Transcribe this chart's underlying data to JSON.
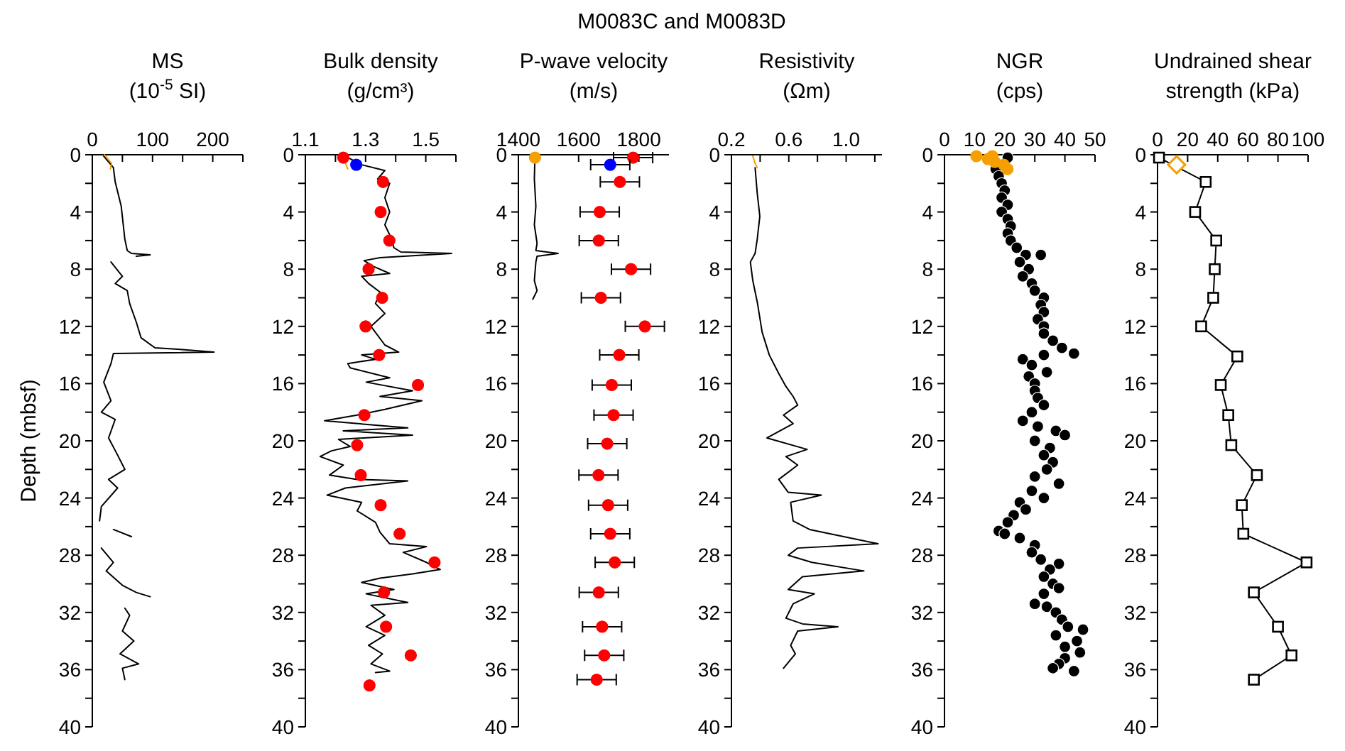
{
  "chart_data": [
    {
      "type": "other",
      "title": "M0083C and M0083D"
    },
    {
      "type": "line",
      "title": "MS",
      "xlabel": "(10$^{-5}$ SI)",
      "ylabel": "Depth (mbsf)",
      "xlim": [
        0,
        250
      ],
      "xticks": [
        0,
        {
          "value": 50,
          "label": null
        },
        100,
        {
          "value": 150,
          "label": null
        },
        200,
        {
          "value": 250,
          "label": null
        }
      ],
      "ylim": [
        40,
        0
      ],
      "yticks": [
        0,
        {
          "value": 2,
          "label": null
        },
        4,
        {
          "value": 6,
          "label": null
        },
        8,
        {
          "value": 10,
          "label": null
        },
        12,
        {
          "value": 14,
          "label": null
        },
        16,
        {
          "value": 18,
          "label": null
        },
        20,
        {
          "value": 22,
          "label": null
        },
        24,
        {
          "value": 26,
          "label": null
        },
        28,
        {
          "value": 30,
          "label": null
        },
        32,
        {
          "value": 34,
          "label": null
        },
        36,
        {
          "value": 38,
          "label": null
        },
        40
      ],
      "series": [
        {
          "color": "#000000",
          "x": [
            19,
            35,
            38,
            48,
            54,
            58,
            65,
            96,
            73,
            null,
            31,
            50,
            38,
            58,
            62,
            73,
            81,
            104,
            142,
            202,
            35,
            31,
            19,
            31,
            15,
            38,
            27,
            42,
            54,
            27,
            42,
            15,
            12,
            null,
            35,
            65,
            null,
            15,
            35,
            23,
            50,
            73,
            96,
            null,
            54,
            62,
            50,
            69,
            46,
            77,
            50,
            54
          ],
          "values": [
            0.1,
            0.9,
            1.9,
            3.6,
            5.9,
            6.7,
            6.9,
            7.0,
            7.1,
            null,
            7.5,
            8.5,
            9.0,
            9.5,
            10.4,
            11.7,
            12.8,
            13.5,
            13.6,
            13.8,
            13.9,
            14.6,
            15.9,
            17.2,
            18.0,
            18.5,
            19.8,
            21.0,
            22.0,
            22.7,
            23.3,
            24.6,
            25.6,
            null,
            26.2,
            26.7,
            null,
            27.5,
            28.5,
            29.1,
            30.1,
            30.6,
            30.9,
            null,
            31.7,
            32.2,
            33.3,
            34.0,
            34.9,
            35.6,
            35.9,
            36.7
          ]
        },
        {
          "color": "#f5a000",
          "x": [
            20,
            28,
            32,
            30
          ],
          "values": [
            0.0,
            0.4,
            0.6,
            1.0
          ]
        }
      ]
    },
    {
      "type": "line",
      "title": "Bulk density",
      "xlabel": "(g/cm³)",
      "xlim": [
        1.1,
        1.6
      ],
      "xticks": [
        1.1,
        {
          "value": 1.2,
          "label": null
        },
        1.3,
        {
          "value": 1.4,
          "label": null
        },
        1.5,
        {
          "value": 1.6,
          "label": null
        }
      ],
      "ylim": [
        40,
        0
      ],
      "yticks": [
        0,
        {
          "value": 2,
          "label": null
        },
        4,
        {
          "value": 6,
          "label": null
        },
        8,
        {
          "value": 10,
          "label": null
        },
        12,
        {
          "value": 14,
          "label": null
        },
        16,
        {
          "value": 18,
          "label": null
        },
        20,
        {
          "value": 22,
          "label": null
        },
        24,
        {
          "value": 26,
          "label": null
        },
        28,
        {
          "value": 30,
          "label": null
        },
        32,
        {
          "value": 34,
          "label": null
        },
        36,
        {
          "value": 38,
          "label": null
        },
        40
      ],
      "series": [
        {
          "color": "#000000",
          "x": [
            1.233,
            1.287,
            1.364,
            1.34,
            1.38,
            1.364,
            1.38,
            1.364,
            1.387,
            1.394,
            1.417,
            1.586,
            1.348,
            1.295,
            1.325,
            1.38,
            1.287,
            1.31,
            1.348,
            1.333,
            1.364,
            1.318,
            1.364,
            1.41,
            1.287,
            1.333,
            1.241,
            1.249,
            1.38,
            1.302,
            1.456,
            1.348,
            1.487,
            1.364,
            1.272,
            1.164,
            1.44,
            1.226,
            1.456,
            1.21,
            1.249,
            1.187,
            1.149,
            1.226,
            1.18,
            1.272,
            1.44,
            1.233,
            1.172,
            1.287,
            1.272,
            1.333,
            1.348,
            1.38,
            1.502,
            1.425,
            1.502,
            1.548,
            1.456,
            1.348,
            1.287,
            1.394,
            1.302,
            1.44,
            1.318,
            1.364,
            1.302,
            1.364,
            1.31,
            1.356,
            1.318,
            1.38,
            1.333
          ],
          "values": [
            0.1,
            0.7,
            1.1,
            1.7,
            2.0,
            3.0,
            4.0,
            4.9,
            5.9,
            6.5,
            6.8,
            6.9,
            7.2,
            7.4,
            7.8,
            8.3,
            8.5,
            9.0,
            9.6,
            10.4,
            11.1,
            12.0,
            13.3,
            13.8,
            14.0,
            14.3,
            14.6,
            14.9,
            15.6,
            15.9,
            16.5,
            16.9,
            17.2,
            17.8,
            18.2,
            18.6,
            19.1,
            19.3,
            19.6,
            19.9,
            20.4,
            20.7,
            21.1,
            21.7,
            22.4,
            22.7,
            22.8,
            23.3,
            23.8,
            24.3,
            24.9,
            25.7,
            26.4,
            27.2,
            27.4,
            27.8,
            28.5,
            29.0,
            29.3,
            29.6,
            29.9,
            30.4,
            30.7,
            31.3,
            31.5,
            32.2,
            33.0,
            33.6,
            34.3,
            34.9,
            35.6,
            36.1,
            36.2
          ]
        },
        {
          "type": "line",
          "color": "#f5a000",
          "x": [
            1.233,
            1.241
          ],
          "values": [
            0.6,
            1.0
          ]
        },
        {
          "type": "scatter",
          "marker": "circle",
          "color": "#ff0000",
          "x": [
            1.226,
            1.358,
            1.35,
            1.379,
            1.31,
            1.355,
            1.3,
            1.345,
            1.474,
            1.296,
            1.272,
            1.284,
            1.35,
            1.413,
            1.529,
            1.361,
            1.368,
            1.45,
            1.313
          ],
          "values": [
            0.2,
            1.9,
            4.0,
            6.0,
            8.0,
            10.0,
            12.0,
            14.0,
            16.1,
            18.2,
            20.3,
            22.4,
            24.5,
            26.5,
            28.5,
            30.6,
            33.0,
            35.0,
            37.1
          ]
        },
        {
          "type": "scatter",
          "marker": "circle",
          "color": "#0000ff",
          "x": [
            1.269
          ],
          "values": [
            0.7
          ]
        }
      ]
    },
    {
      "type": "line",
      "title": "P-wave velocity",
      "xlabel": "(m/s)",
      "xlim": [
        1400,
        1900
      ],
      "xticks": [
        1400,
        1600,
        1800
      ],
      "ylim": [
        40,
        0
      ],
      "yticks": [
        0,
        {
          "value": 2,
          "label": null
        },
        4,
        {
          "value": 6,
          "label": null
        },
        8,
        {
          "value": 10,
          "label": null
        },
        12,
        {
          "value": 14,
          "label": null
        },
        16,
        {
          "value": 18,
          "label": null
        },
        20,
        {
          "value": 22,
          "label": null
        },
        24,
        {
          "value": 26,
          "label": null
        },
        28,
        {
          "value": 30,
          "label": null
        },
        32,
        {
          "value": 34,
          "label": null
        },
        36,
        {
          "value": 38,
          "label": null
        },
        40
      ],
      "series": [
        {
          "color": "#000000",
          "x": [
            1455,
            1453,
            1458,
            1453,
            1462,
            1458,
            1532,
            1462,
            1458,
            1453,
            1462,
            1448
          ],
          "values": [
            0.1,
            1.7,
            3.6,
            4.9,
            6.2,
            6.7,
            6.9,
            7.1,
            7.5,
            8.8,
            9.5,
            10.1
          ]
        },
        {
          "type": "scatter",
          "marker": "circle",
          "color": "#f5a000",
          "x": [
            1455
          ],
          "values": [
            0.2
          ]
        },
        {
          "type": "scatter",
          "marker": "circle",
          "color": "#ff0000",
          "x": [
            1781,
            1737,
            1670,
            1667,
            1774,
            1674,
            1820,
            1735,
            1710,
            1716,
            1695,
            1666,
            1698,
            1705,
            1720,
            1667,
            1678,
            1685,
            1660
          ],
          "values": [
            0.2,
            1.9,
            4.0,
            6.0,
            8.0,
            10.0,
            12.0,
            14.0,
            16.1,
            18.2,
            20.2,
            22.4,
            24.5,
            26.5,
            28.5,
            30.6,
            33.0,
            35.0,
            36.7
          ],
          "xerrors": [
            65,
            65,
            65,
            65,
            65,
            65,
            65,
            65,
            65,
            65,
            65,
            65,
            65,
            65,
            65,
            65,
            65,
            65,
            65
          ]
        },
        {
          "type": "scatter",
          "marker": "circle",
          "color": "#0000ff",
          "x": [
            1705
          ],
          "values": [
            0.7
          ],
          "xerrors": [
            65
          ]
        }
      ]
    },
    {
      "type": "line",
      "title": "Resistivity",
      "xlabel": "(Ωm)",
      "xlim": [
        0.2,
        1.25
      ],
      "xticks": [
        0.2,
        {
          "value": 0.4,
          "label": null
        },
        0.6,
        {
          "value": 0.8,
          "label": null
        },
        {
          "value": 1,
          "label": "1.0"
        },
        {
          "value": 1.2,
          "label": null
        }
      ],
      "ylim": [
        40,
        0
      ],
      "yticks": [
        0,
        {
          "value": 2,
          "label": null
        },
        4,
        {
          "value": 6,
          "label": null
        },
        8,
        {
          "value": 10,
          "label": null
        },
        12,
        {
          "value": 14,
          "label": null
        },
        16,
        {
          "value": 18,
          "label": null
        },
        20,
        {
          "value": 22,
          "label": null
        },
        24,
        {
          "value": 26,
          "label": null
        },
        28,
        {
          "value": 30,
          "label": null
        },
        32,
        {
          "value": 34,
          "label": null
        },
        36,
        {
          "value": 38,
          "label": null
        },
        40
      ],
      "series": [
        {
          "color": "#000000",
          "x": [
            0.365,
            0.38,
            0.398,
            0.38,
            0.365,
            0.332,
            0.349,
            0.382,
            0.414,
            0.464,
            0.53,
            0.58,
            0.63,
            0.662,
            0.563,
            0.63,
            0.448,
            0.728,
            0.58,
            0.662,
            0.53,
            0.596,
            0.827,
            0.613,
            0.63,
            0.745,
            1.223,
            0.662,
            0.596,
            0.761,
            1.124,
            0.695,
            0.596,
            0.778,
            0.63,
            0.58,
            0.695,
            0.943,
            0.662,
            0.613,
            0.646,
            0.563
          ],
          "values": [
            0.9,
            2.7,
            4.3,
            5.9,
            6.9,
            7.5,
            8.8,
            10.4,
            12.4,
            14.0,
            15.3,
            16.2,
            16.9,
            17.5,
            18.2,
            18.8,
            19.8,
            20.6,
            21.1,
            21.7,
            22.7,
            23.6,
            23.8,
            24.3,
            25.6,
            26.2,
            27.2,
            27.5,
            28.0,
            28.5,
            29.1,
            29.5,
            30.4,
            30.7,
            31.4,
            32.4,
            32.8,
            33.0,
            33.3,
            34.3,
            34.9,
            35.9
          ]
        },
        {
          "color": "#f5a000",
          "x": [
            0.349,
            0.365,
            0.38
          ],
          "values": [
            0.1,
            0.6,
            0.9
          ]
        }
      ]
    },
    {
      "type": "scatter",
      "title": "NGR",
      "xlabel": "(cps)",
      "xlim": [
        0,
        50
      ],
      "xticks": [
        0,
        10,
        20,
        30,
        40,
        50
      ],
      "ylim": [
        40,
        0
      ],
      "yticks": [
        0,
        {
          "value": 2,
          "label": null
        },
        4,
        {
          "value": 6,
          "label": null
        },
        8,
        {
          "value": 10,
          "label": null
        },
        12,
        {
          "value": 14,
          "label": null
        },
        16,
        {
          "value": 18,
          "label": null
        },
        20,
        {
          "value": 22,
          "label": null
        },
        24,
        {
          "value": 26,
          "label": null
        },
        28,
        {
          "value": 30,
          "label": null
        },
        32,
        {
          "value": 34,
          "label": null
        },
        36,
        {
          "value": 38,
          "label": null
        },
        40
      ],
      "marker": "circle",
      "series": [
        {
          "color": "#000000",
          "x": [
            21,
            17,
            18,
            19,
            20,
            19,
            21,
            19,
            21,
            22,
            21,
            22,
            24,
            32,
            27,
            25,
            28,
            26,
            29,
            30,
            33,
            32,
            33,
            31,
            33,
            33,
            36,
            39,
            43,
            33,
            26,
            29,
            34,
            28,
            30,
            30,
            31,
            33,
            29,
            26,
            31,
            37,
            40,
            30,
            35,
            33,
            36,
            34,
            30,
            38,
            29,
            33,
            25,
            27,
            23,
            21,
            18,
            20,
            25,
            30,
            29,
            32,
            38,
            35,
            33,
            36,
            38,
            33,
            30,
            34,
            37,
            39,
            41,
            46,
            37,
            44,
            40,
            45,
            40,
            38,
            36,
            43
          ],
          "values": [
            0.2,
            1.0,
            1.5,
            2.0,
            2.5,
            3.0,
            3.5,
            4.0,
            4.5,
            5.0,
            5.5,
            6.0,
            6.5,
            7.0,
            7.0,
            7.5,
            8.0,
            8.5,
            9.0,
            9.5,
            10.0,
            10.5,
            11.0,
            11.5,
            12.0,
            12.5,
            13.0,
            13.5,
            13.9,
            14.0,
            14.3,
            14.7,
            15.2,
            15.5,
            16.0,
            16.5,
            17.0,
            17.5,
            18.0,
            18.6,
            19.0,
            19.3,
            19.6,
            20.0,
            20.5,
            21.0,
            21.5,
            22.0,
            22.5,
            23.0,
            23.5,
            24.0,
            24.3,
            24.8,
            25.2,
            25.7,
            26.3,
            26.5,
            26.8,
            27.3,
            27.8,
            28.3,
            28.6,
            29.0,
            29.5,
            30.0,
            30.3,
            30.7,
            31.4,
            31.6,
            32.0,
            32.5,
            33.0,
            33.2,
            33.6,
            34.0,
            34.4,
            34.8,
            35.2,
            35.6,
            35.9,
            36.1
          ]
        },
        {
          "color": "#f5a000",
          "x": [
            10.6,
            15.9,
            14.4,
            16.7,
            19.7,
            20.9
          ],
          "values": [
            0.1,
            0.1,
            0.3,
            0.5,
            0.7,
            1.0
          ]
        }
      ]
    },
    {
      "type": "line",
      "title": "Undrained shear",
      "xlabel": "strength (kPa)",
      "xlim": [
        0,
        100
      ],
      "xticks": [
        0,
        20,
        40,
        60,
        80,
        100
      ],
      "ylim": [
        40,
        0
      ],
      "yticks": [
        0,
        {
          "value": 2,
          "label": null
        },
        4,
        {
          "value": 6,
          "label": null
        },
        8,
        {
          "value": 10,
          "label": null
        },
        12,
        {
          "value": 14,
          "label": null
        },
        16,
        {
          "value": 18,
          "label": null
        },
        20,
        {
          "value": 22,
          "label": null
        },
        24,
        {
          "value": 26,
          "label": null
        },
        28,
        {
          "value": 30,
          "label": null
        },
        32,
        {
          "value": 34,
          "label": null
        },
        36,
        {
          "value": 38,
          "label": null
        },
        40
      ],
      "series": [
        {
          "marker": "square",
          "color": "#000000",
          "x": [
            1,
            32,
            25,
            39,
            38,
            37,
            29,
            53,
            42,
            47,
            49,
            66,
            56,
            57,
            99,
            64,
            80,
            89,
            64
          ],
          "values": [
            0.2,
            1.9,
            4.0,
            6.0,
            8.0,
            10.0,
            12.0,
            14.1,
            16.1,
            18.2,
            20.3,
            22.4,
            24.5,
            26.5,
            28.5,
            30.6,
            33.0,
            35.0,
            36.7
          ]
        },
        {
          "type": "scatter",
          "marker": "diamond",
          "color": "#f5a000",
          "x": [
            12.7
          ],
          "values": [
            0.7
          ]
        }
      ]
    }
  ]
}
